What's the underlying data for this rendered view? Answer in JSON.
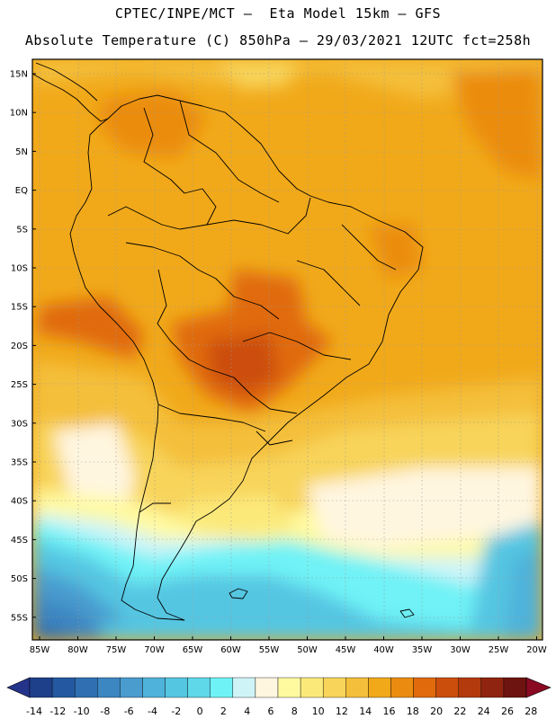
{
  "header": {
    "line1": "CPTEC/INPE/MCT –  Eta Model 15km – GFS",
    "line2": "Absolute Temperature (C) 850hPa – 29/03/2021 12UTC fct=258h"
  },
  "map": {
    "lat_labels": [
      "15N",
      "10N",
      "5N",
      "EQ",
      "5S",
      "10S",
      "15S",
      "20S",
      "25S",
      "30S",
      "35S",
      "40S",
      "45S",
      "50S",
      "55S"
    ],
    "lon_labels": [
      "85W",
      "80W",
      "75W",
      "70W",
      "65W",
      "60W",
      "55W",
      "50W",
      "45W",
      "40W",
      "35W",
      "30W",
      "25W",
      "20W"
    ]
  },
  "colorbar": {
    "labels": [
      "-14",
      "-12",
      "-10",
      "-8",
      "-6",
      "-4",
      "-2",
      "0",
      "2",
      "4",
      "6",
      "8",
      "10",
      "12",
      "14",
      "16",
      "18",
      "20",
      "22",
      "24",
      "26",
      "28"
    ],
    "colors": [
      "#1e3f8a",
      "#2458a0",
      "#2f6fb2",
      "#3c86c2",
      "#4a9ccf",
      "#4fb2da",
      "#55c6e2",
      "#5fd8ea",
      "#6ff2f6",
      "#cff4f8",
      "#fff6e0",
      "#fffaa0",
      "#fbe97a",
      "#f8d45a",
      "#f4bf3a",
      "#f1a91a",
      "#eb8c10",
      "#e06a0c",
      "#cc4e0c",
      "#b33a0c",
      "#8f2410",
      "#6e1410"
    ],
    "under_color": "#24348a",
    "over_color": "#8a0a24"
  }
}
